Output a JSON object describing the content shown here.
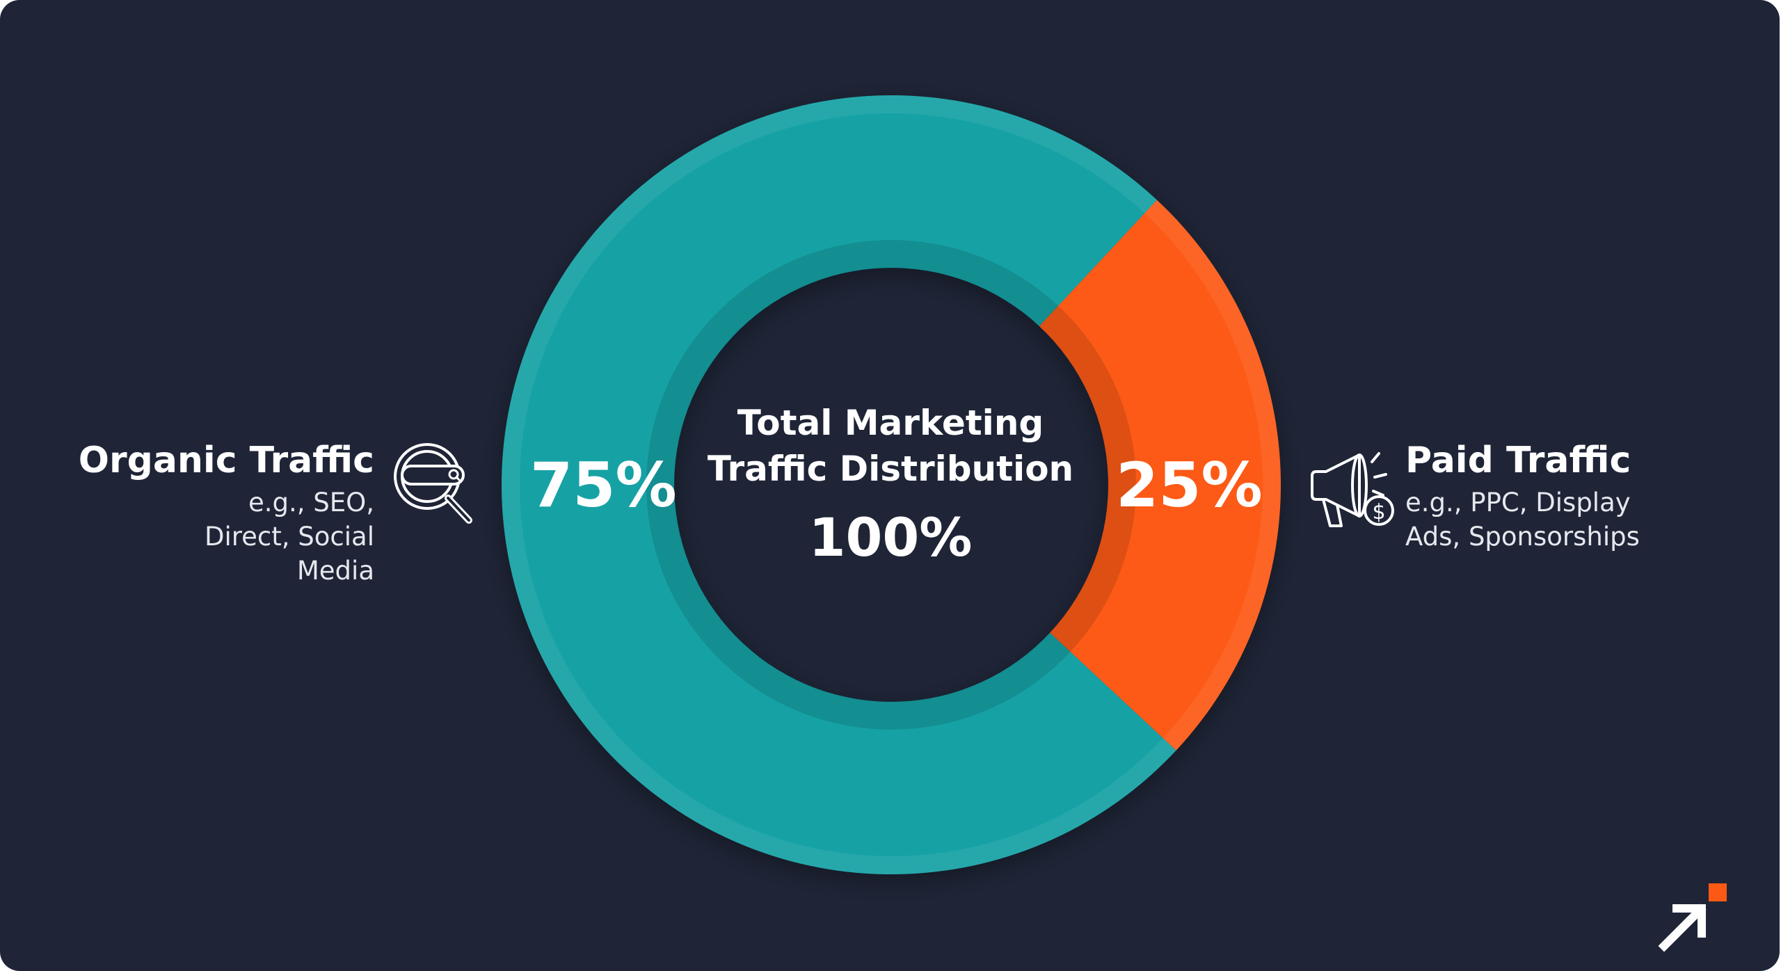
{
  "chart_data": {
    "type": "pie",
    "title": "Total Marketing Traffic Distribution",
    "total_label": "100%",
    "slices": [
      {
        "name": "Organic Traffic",
        "value": 75,
        "label": "75%",
        "description": "e.g., SEO, Direct, Social Media",
        "color": "#12a2a5",
        "icon": "magnifier-search-icon"
      },
      {
        "name": "Paid Traffic",
        "value": 25,
        "label": "25%",
        "description": "e.g., PPC, Display Ads, Sponsorships",
        "color": "#fc5a14",
        "icon": "megaphone-dollar-icon"
      }
    ],
    "legend_placement": "left and right of the donut"
  },
  "colors": {
    "background": "#1f2537",
    "organic": "#12a2a5",
    "paid": "#fc5a14",
    "text": "#ffffff"
  },
  "brand": {
    "logo_icon": "arrow-up-right-logo-icon"
  }
}
